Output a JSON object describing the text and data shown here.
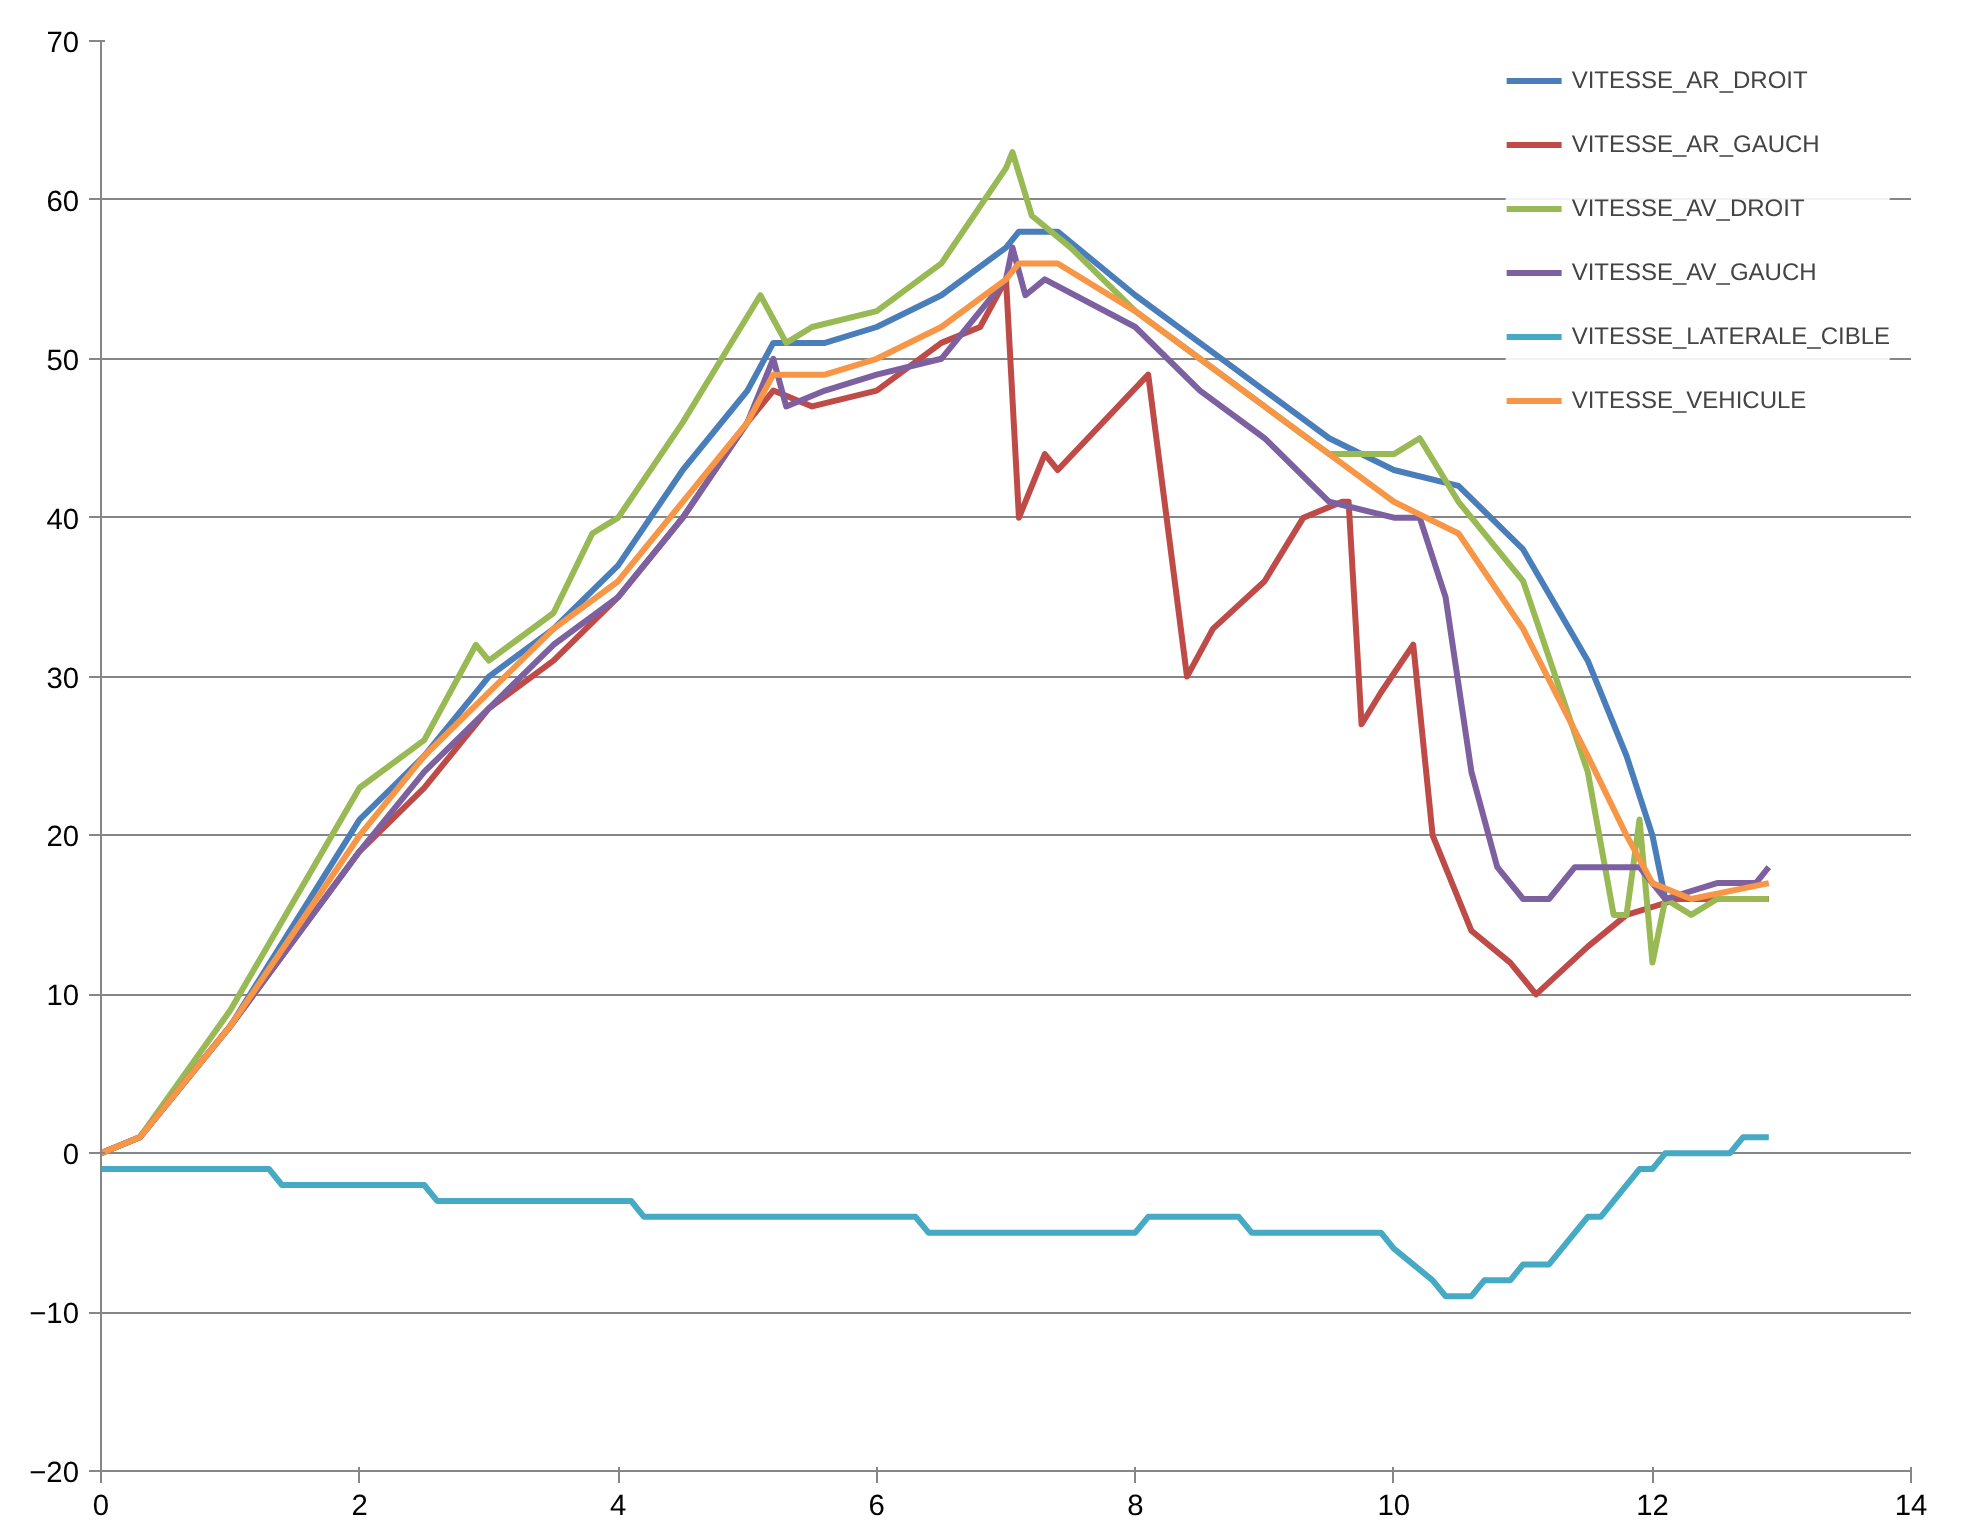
{
  "chart_data": {
    "type": "line",
    "xlim": [
      0,
      14
    ],
    "xticks": [
      0,
      2,
      4,
      6,
      8,
      10,
      12,
      14
    ],
    "ylim": [
      -20,
      70
    ],
    "yticks": [
      -20,
      -10,
      0,
      10,
      20,
      30,
      40,
      50,
      60,
      70
    ],
    "grid": "y",
    "legend": "top right",
    "series": [
      {
        "name": "VITESSE_AR_DROIT",
        "color": "#4a7ebb",
        "x": [
          0,
          0.3,
          1,
          2,
          2.5,
          3,
          3.5,
          4,
          4.5,
          5,
          5.2,
          5.6,
          6,
          6.5,
          7,
          7.1,
          7.4,
          8,
          8.5,
          9,
          9.5,
          10,
          10.5,
          11,
          11.5,
          11.8,
          12,
          12.1,
          12.5,
          12.9
        ],
        "values": [
          0,
          1,
          8,
          21,
          25,
          30,
          33,
          37,
          43,
          48,
          51,
          51,
          52,
          54,
          57,
          58,
          58,
          54,
          51,
          48,
          45,
          43,
          42,
          38,
          31,
          25,
          20,
          16,
          16,
          16
        ]
      },
      {
        "name": "VITESSE_AR_GAUCH",
        "color": "#be4b48",
        "x": [
          0,
          0.3,
          1,
          2,
          2.5,
          3,
          3.5,
          4,
          4.5,
          5,
          5.2,
          5.5,
          6,
          6.5,
          6.8,
          7,
          7.1,
          7.3,
          7.4,
          8.1,
          8.4,
          8.6,
          9,
          9.3,
          9.6,
          9.65,
          9.75,
          9.9,
          10.15,
          10.3,
          10.6,
          10.9,
          11.1,
          11.5,
          11.8,
          12.2,
          12.9
        ],
        "values": [
          0,
          1,
          8,
          19,
          23,
          28,
          31,
          35,
          40,
          46,
          48,
          47,
          48,
          51,
          52,
          55,
          40,
          44,
          43,
          49,
          30,
          33,
          36,
          40,
          41,
          41,
          27,
          29,
          32,
          20,
          14,
          12,
          10,
          13,
          15,
          16,
          16
        ]
      },
      {
        "name": "VITESSE_AV_DROIT",
        "color": "#98b954",
        "x": [
          0,
          0.3,
          1,
          2,
          2.5,
          2.9,
          3,
          3.5,
          3.8,
          4,
          4.5,
          4.8,
          5.1,
          5.3,
          5.5,
          6,
          6.5,
          7,
          7.05,
          7.2,
          7.5,
          8,
          8.5,
          9,
          9.5,
          10,
          10.2,
          10.5,
          11,
          11.5,
          11.7,
          11.8,
          11.9,
          12,
          12.1,
          12.3,
          12.5,
          12.9
        ],
        "values": [
          0,
          1,
          9,
          23,
          26,
          32,
          31,
          34,
          39,
          40,
          46,
          50,
          54,
          51,
          52,
          53,
          56,
          62,
          63,
          59,
          57,
          53,
          50,
          47,
          44,
          44,
          45,
          41,
          36,
          24,
          15,
          15,
          21,
          12,
          16,
          15,
          16,
          16
        ]
      },
      {
        "name": "VITESSE_AV_GAUCH",
        "color": "#7d60a0",
        "x": [
          0,
          0.3,
          1,
          2,
          2.5,
          3,
          3.5,
          4,
          4.5,
          5,
          5.2,
          5.3,
          5.6,
          6,
          6.5,
          7,
          7.05,
          7.15,
          7.3,
          8,
          8.5,
          9,
          9.5,
          10,
          10.2,
          10.4,
          10.6,
          10.8,
          11,
          11.2,
          11.4,
          11.9,
          12.1,
          12.5,
          12.8,
          12.9
        ],
        "values": [
          0,
          1,
          8,
          19,
          24,
          28,
          32,
          35,
          40,
          46,
          50,
          47,
          48,
          49,
          50,
          55,
          57,
          54,
          55,
          52,
          48,
          45,
          41,
          40,
          40,
          35,
          24,
          18,
          16,
          16,
          18,
          18,
          16,
          17,
          17,
          18
        ]
      },
      {
        "name": "VITESSE_LATERALE_CIBLE",
        "color": "#46aac5",
        "x": [
          0,
          1.3,
          1.4,
          2.5,
          2.6,
          4.1,
          4.2,
          6.3,
          6.4,
          8,
          8.1,
          8.8,
          8.9,
          9.9,
          10,
          10.3,
          10.4,
          10.6,
          10.7,
          10.9,
          11,
          11.2,
          11.5,
          11.6,
          11.9,
          12,
          12.1,
          12.6,
          12.7,
          12.9
        ],
        "values": [
          -1,
          -1,
          -2,
          -2,
          -3,
          -3,
          -4,
          -4,
          -5,
          -5,
          -4,
          -4,
          -5,
          -5,
          -6,
          -8,
          -9,
          -9,
          -8,
          -8,
          -7,
          -7,
          -4,
          -4,
          -1,
          -1,
          0,
          0,
          1,
          1
        ]
      },
      {
        "name": "VITESSE_VEHICULE",
        "color": "#f79646",
        "x": [
          0,
          0.3,
          1,
          2,
          2.5,
          3,
          3.5,
          4,
          4.5,
          5,
          5.2,
          5.6,
          6,
          6.5,
          7,
          7.1,
          7.4,
          8,
          8.5,
          9,
          9.5,
          10,
          10.5,
          11,
          11.5,
          11.8,
          12,
          12.3,
          12.9
        ],
        "values": [
          0,
          1,
          8,
          20,
          25,
          29,
          33,
          36,
          41,
          46,
          49,
          49,
          50,
          52,
          55,
          56,
          56,
          53,
          50,
          47,
          44,
          41,
          39,
          33,
          25,
          20,
          17,
          16,
          17
        ]
      }
    ]
  }
}
